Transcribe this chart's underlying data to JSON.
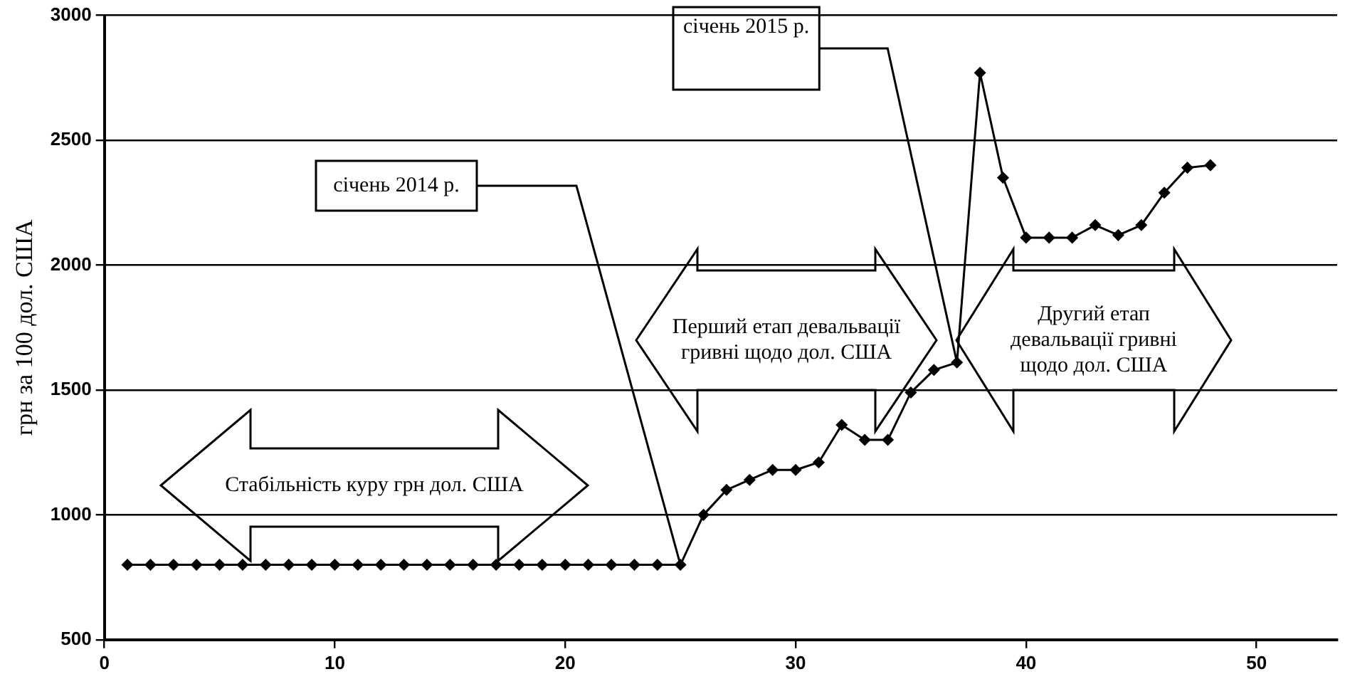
{
  "chart_data": {
    "type": "line",
    "ylabel": "грн за 100 дол. США",
    "x": [
      1,
      2,
      3,
      4,
      5,
      6,
      7,
      8,
      9,
      10,
      11,
      12,
      13,
      14,
      15,
      16,
      17,
      18,
      19,
      20,
      21,
      22,
      23,
      24,
      25,
      26,
      27,
      28,
      29,
      30,
      31,
      32,
      33,
      34,
      35,
      36,
      37,
      38,
      39,
      40,
      41,
      42,
      43,
      44,
      45,
      46,
      47,
      48
    ],
    "series": [
      {
        "color": "#000000",
        "values": [
          800,
          800,
          800,
          800,
          800,
          800,
          800,
          800,
          800,
          800,
          800,
          800,
          800,
          800,
          800,
          800,
          800,
          800,
          800,
          800,
          800,
          800,
          800,
          800,
          800,
          1000,
          1100,
          1140,
          1180,
          1180,
          1210,
          1360,
          1300,
          1300,
          1490,
          1580,
          1610,
          2770,
          2350,
          2110,
          2110,
          2110,
          2160,
          2120,
          2160,
          2290,
          2390,
          2400
        ]
      }
    ],
    "xlim": [
      0,
      53.5
    ],
    "xticks": [
      0,
      10,
      20,
      30,
      40,
      50
    ],
    "ylim": [
      500,
      3000
    ],
    "yticks": [
      500,
      1000,
      1500,
      2000,
      2500,
      3000
    ],
    "grid": "y",
    "marker": "diamond",
    "legend": false,
    "annotations": [
      {
        "text": "січень 2014 р.",
        "x": 25,
        "y": 800
      },
      {
        "text": "січень 2015 р.",
        "x": 37,
        "y": 1610
      },
      "Стабільність куру грн дол. США",
      "Перший етап девальвації гривні щодо дол. США",
      "Другий етап девальвації гривні щодо дол. США"
    ]
  }
}
